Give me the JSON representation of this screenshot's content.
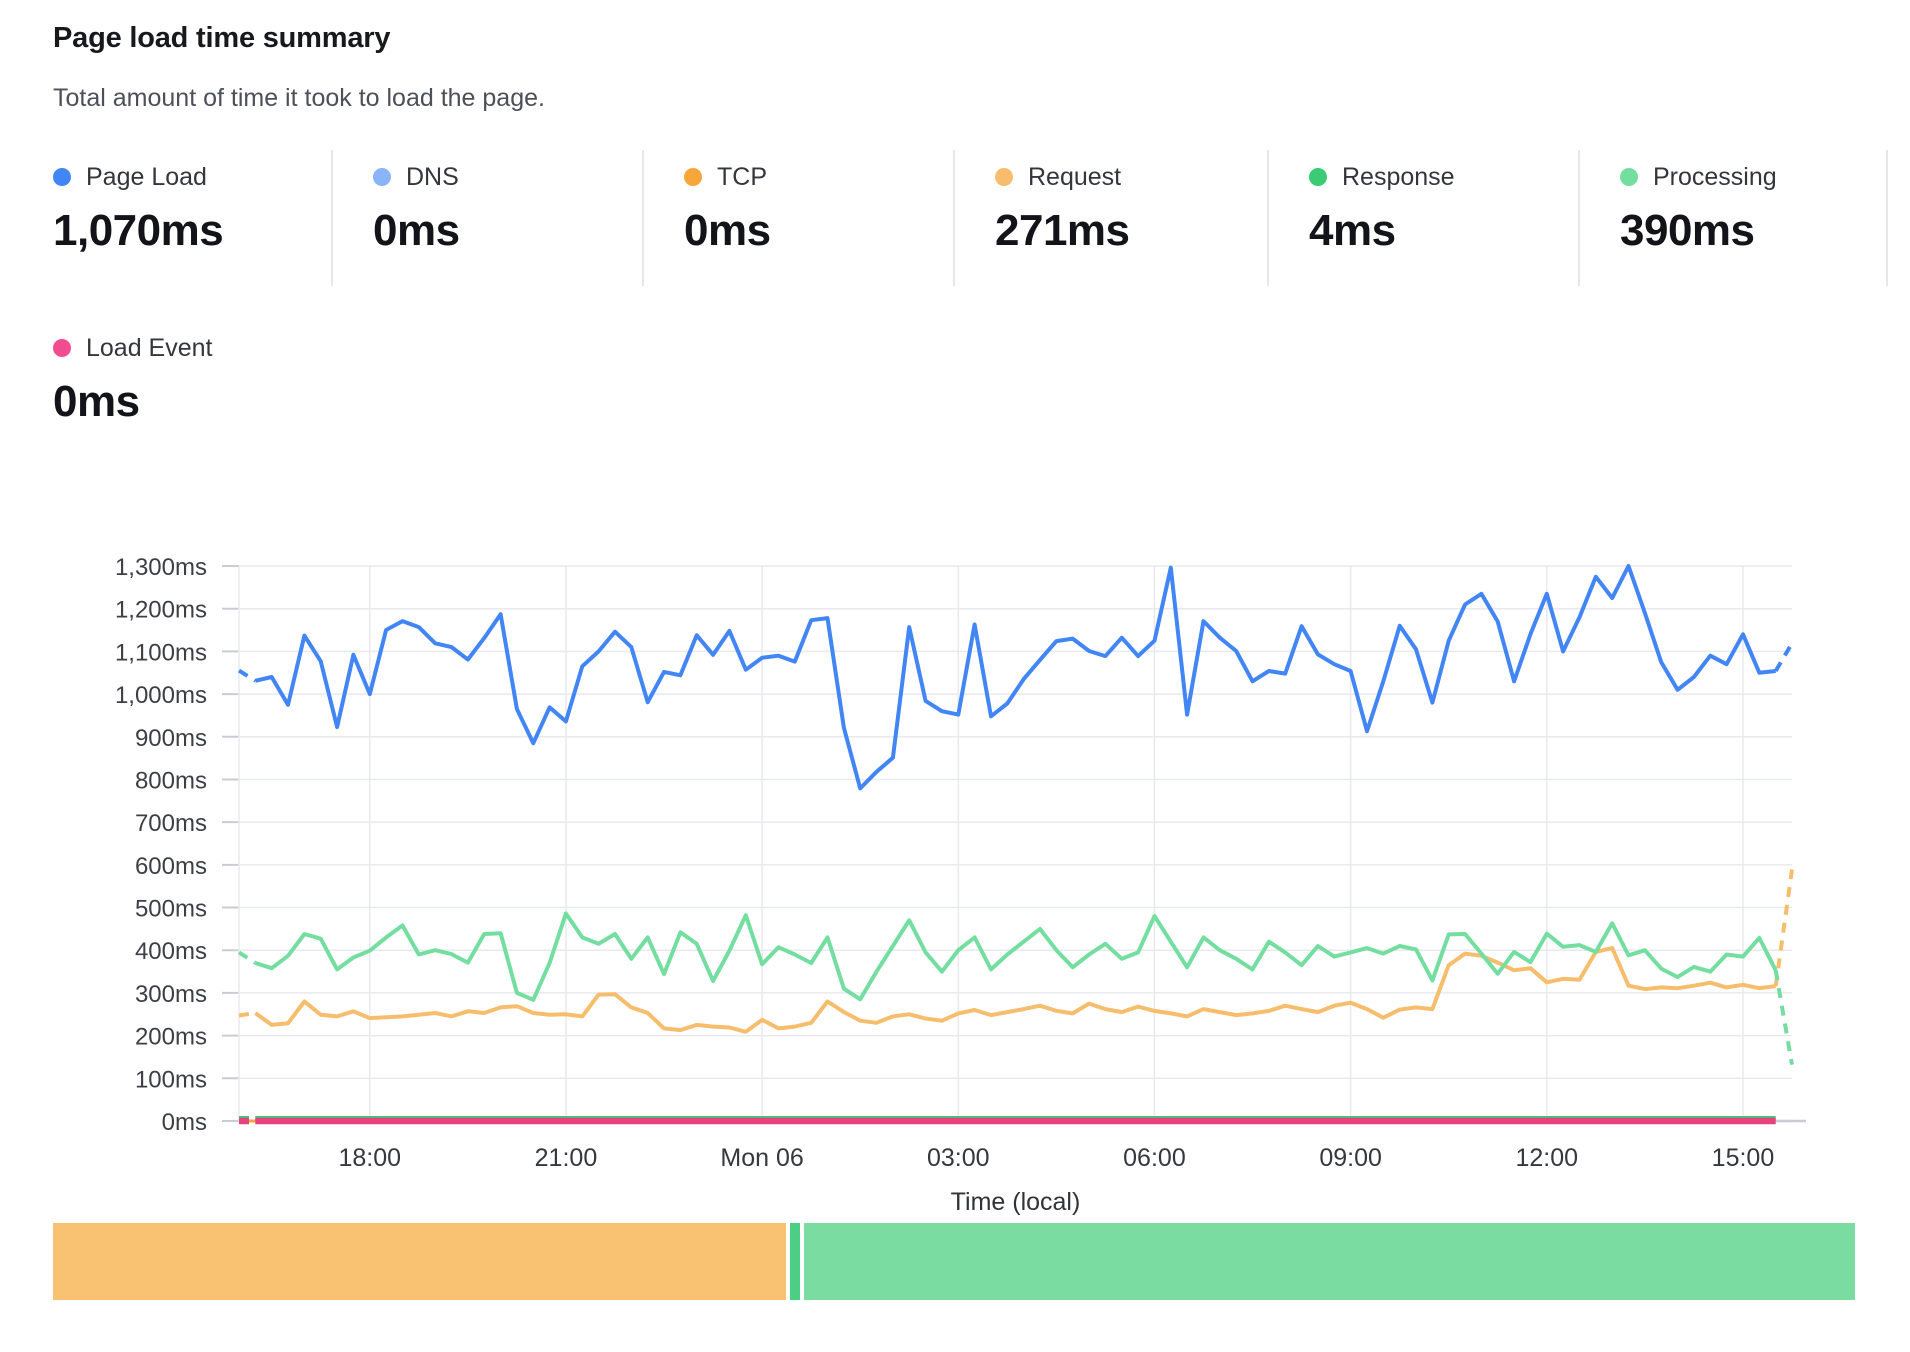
{
  "header": {
    "title": "Page load time summary",
    "subtitle": "Total amount of time it took to load the page."
  },
  "metrics": [
    {
      "label": "Page Load",
      "value": "1,070ms",
      "color": "#4285f4"
    },
    {
      "label": "DNS",
      "value": "0ms",
      "color": "#8ab4f8"
    },
    {
      "label": "TCP",
      "value": "0ms",
      "color": "#f6a63a"
    },
    {
      "label": "Request",
      "value": "271ms",
      "color": "#f7bd6c"
    },
    {
      "label": "Response",
      "value": "4ms",
      "color": "#3acb74"
    },
    {
      "label": "Processing",
      "value": "390ms",
      "color": "#74dda0"
    }
  ],
  "metrics_row2": [
    {
      "label": "Load Event",
      "value": "0ms",
      "color": "#f04c8f"
    }
  ],
  "chart_data": {
    "type": "line",
    "title": "Page load time summary",
    "xlabel": "Time (local)",
    "ylabel": "",
    "ylim": [
      0,
      1300
    ],
    "grid": true,
    "legend_position": "top-metrics-row",
    "x_interval": "15min, Sun 16:00 to Mon 15:45 local time",
    "y_ticks": [
      "0ms",
      "100ms",
      "200ms",
      "300ms",
      "400ms",
      "500ms",
      "600ms",
      "700ms",
      "800ms",
      "900ms",
      "1,000ms",
      "1,100ms",
      "1,200ms",
      "1,300ms"
    ],
    "x_ticks": [
      {
        "label": "18:00",
        "index": 8
      },
      {
        "label": "21:00",
        "index": 20
      },
      {
        "label": "Mon 06",
        "index": 32
      },
      {
        "label": "03:00",
        "index": 44
      },
      {
        "label": "06:00",
        "index": 56
      },
      {
        "label": "09:00",
        "index": 68
      },
      {
        "label": "12:00",
        "index": 80
      },
      {
        "label": "15:00",
        "index": 92
      }
    ],
    "series": [
      {
        "name": "DNS",
        "color": "#8ab4f8",
        "width": 3,
        "constant": 0,
        "end_index": 94
      },
      {
        "name": "TCP",
        "color": "#f6a63a",
        "width": 3,
        "constant": 0,
        "end_index": 94
      },
      {
        "name": "Response",
        "color": "#3acb74",
        "width": 4,
        "constant": 4,
        "render_value": 7,
        "end_index": 94,
        "dash_first": true
      },
      {
        "name": "Load Event",
        "color": "#e64180",
        "width": 6.5,
        "constant": 0,
        "end_index": 94,
        "dash_first": true
      },
      {
        "name": "Request",
        "color": "#f6bd6c",
        "width": 4,
        "dash_first": true,
        "dash_last": true,
        "values": [
          247,
          253,
          225,
          229,
          280,
          249,
          245,
          257,
          241,
          243,
          245,
          249,
          253,
          245,
          257,
          253,
          266,
          269,
          253,
          249,
          250,
          245,
          296,
          297,
          266,
          253,
          217,
          213,
          225,
          221,
          219,
          209,
          237,
          217,
          221,
          230,
          280,
          255,
          235,
          230,
          245,
          250,
          240,
          235,
          252,
          260,
          248,
          255,
          262,
          270,
          258,
          252,
          275,
          262,
          255,
          268,
          258,
          252,
          245,
          262,
          255,
          248,
          252,
          258,
          270,
          262,
          255,
          270,
          277,
          262,
          242,
          261,
          266,
          262,
          365,
          392,
          387,
          371,
          353,
          358,
          325,
          333,
          331,
          396,
          405,
          317,
          309,
          313,
          311,
          317,
          324,
          313,
          319,
          311,
          316,
          589
        ]
      },
      {
        "name": "Processing",
        "color": "#74dda0",
        "width": 4,
        "dash_first": true,
        "dash_last": true,
        "values": [
          395,
          370,
          358,
          387,
          438,
          427,
          355,
          383,
          399,
          430,
          458,
          390,
          400,
          391,
          371,
          438,
          440,
          300,
          284,
          370,
          486,
          430,
          415,
          438,
          380,
          430,
          344,
          442,
          415,
          328,
          399,
          482,
          367,
          407,
          390,
          370,
          430,
          310,
          285,
          350,
          410,
          470,
          395,
          350,
          400,
          430,
          355,
          390,
          420,
          450,
          400,
          360,
          390,
          415,
          380,
          395,
          480,
          420,
          360,
          430,
          400,
          380,
          355,
          420,
          395,
          365,
          410,
          385,
          395,
          405,
          392,
          410,
          402,
          329,
          437,
          438,
          392,
          345,
          396,
          372,
          439,
          408,
          412,
          396,
          463,
          388,
          400,
          357,
          337,
          361,
          350,
          390,
          385,
          429,
          353,
          132
        ]
      },
      {
        "name": "Page Load",
        "color": "#4285f4",
        "width": 4,
        "dash_first": true,
        "dash_last": true,
        "values": [
          1055,
          1031,
          1040,
          975,
          1137,
          1077,
          923,
          1092,
          1000,
          1150,
          1171,
          1157,
          1119,
          1110,
          1081,
          1131,
          1187,
          965,
          885,
          969,
          936,
          1065,
          1100,
          1146,
          1110,
          981,
          1052,
          1044,
          1138,
          1092,
          1148,
          1057,
          1085,
          1090,
          1076,
          1173,
          1178,
          921,
          779,
          818,
          851,
          1157,
          984,
          960,
          952,
          1163,
          948,
          978,
          1035,
          1080,
          1124,
          1130,
          1101,
          1089,
          1132,
          1089,
          1125,
          1296,
          952,
          1171,
          1132,
          1101,
          1030,
          1054,
          1048,
          1159,
          1093,
          1070,
          1054,
          913,
          1030,
          1160,
          1105,
          980,
          1125,
          1210,
          1235,
          1170,
          1030,
          1140,
          1235,
          1100,
          1180,
          1275,
          1225,
          1300,
          1190,
          1075,
          1010,
          1040,
          1090,
          1070,
          1140,
          1050,
          1054,
          1119
        ]
      }
    ]
  },
  "breakdown_bar": {
    "segments": [
      {
        "name": "Request",
        "color": "#f8c272",
        "width_pct": "40.65%"
      },
      {
        "name": "Response",
        "color": "#4ccf85",
        "width_pct": "0.55%"
      },
      {
        "name": "Processing",
        "color": "#7bdca2",
        "width_pct": "58.3%"
      }
    ]
  }
}
